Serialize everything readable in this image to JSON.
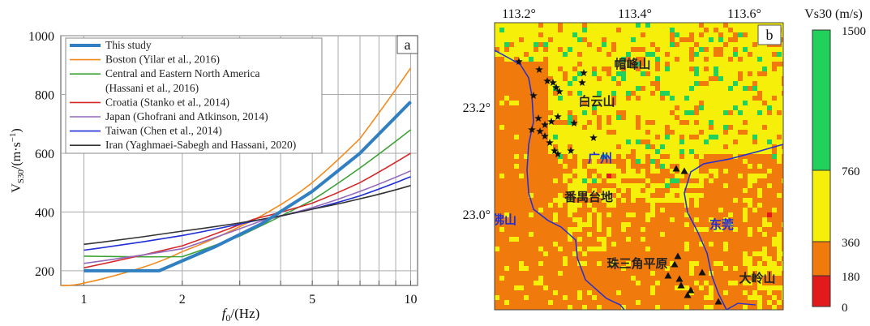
{
  "chart_data": [
    {
      "type": "line",
      "panel_label": "a",
      "xscale": "log",
      "xlim": [
        0.85,
        10.5
      ],
      "ylim": [
        150,
        1000
      ],
      "xticks": [
        1,
        2,
        5,
        10
      ],
      "yticks": [
        200,
        400,
        600,
        800,
        1000
      ],
      "xlabel": "f0/(Hz)",
      "ylabel": "VS30/(m·s⁻¹)",
      "grid": true,
      "legend": "top-left",
      "series": [
        {
          "name": "This study",
          "color": "#2f7fc1",
          "width": 4,
          "x": [
            1,
            1.7,
            2.5,
            3.5,
            5,
            7,
            10
          ],
          "y": [
            200,
            200,
            280,
            360,
            470,
            600,
            775
          ]
        },
        {
          "name": "Boston (Yilar et al., 2016)",
          "color": "#f28a1c",
          "width": 1.6,
          "x": [
            0.85,
            1,
            1.5,
            2,
            3,
            4,
            5,
            7,
            10
          ],
          "y": [
            150,
            158,
            210,
            265,
            350,
            425,
            500,
            650,
            890
          ]
        },
        {
          "name": "Central and Eastern North America (Hassani et al., 2016)",
          "color": "#3da235",
          "width": 1.6,
          "x": [
            1,
            2,
            3,
            5,
            7,
            10
          ],
          "y": [
            250,
            248,
            318,
            440,
            550,
            680
          ]
        },
        {
          "name": "Croatia (Stanko et al., 2014)",
          "color": "#d62728",
          "width": 1.6,
          "x": [
            1,
            2,
            3.3,
            5,
            7,
            10
          ],
          "y": [
            210,
            285,
            375,
            430,
            500,
            600
          ]
        },
        {
          "name": "Japan (Ghofrani and Atkinson, 2014)",
          "color": "#9467bd",
          "width": 1.6,
          "x": [
            1,
            2,
            3.5,
            5,
            7,
            10
          ],
          "y": [
            225,
            275,
            370,
            415,
            470,
            540
          ]
        },
        {
          "name": "Taiwan (Chen et al., 2014)",
          "color": "#1f2ed6",
          "width": 1.6,
          "x": [
            1,
            2,
            3.5,
            5,
            7,
            10
          ],
          "y": [
            270,
            320,
            375,
            410,
            455,
            520
          ]
        },
        {
          "name": "Iran (Yaghmaei-Sabegh and Hassani, 2020)",
          "color": "#333333",
          "width": 1.6,
          "x": [
            1,
            2,
            3.5,
            5,
            7,
            10
          ],
          "y": [
            290,
            335,
            375,
            410,
            445,
            490
          ]
        }
      ]
    },
    {
      "type": "heatmap",
      "panel_label": "b",
      "x_tick_labels": [
        "113.2°",
        "113.4°",
        "113.6°"
      ],
      "y_tick_labels": [
        "23.2°",
        "23.0°"
      ],
      "colorbar": {
        "title": "Vs30 (m/s)",
        "levels": [
          "1500",
          "760",
          "360",
          "180",
          "0"
        ],
        "bands": [
          {
            "from": "760",
            "to": "1500",
            "color": "#22d15b"
          },
          {
            "from": "360",
            "to": "760",
            "color": "#f5ef0a"
          },
          {
            "from": "180",
            "to": "360",
            "color": "#f07a0c"
          },
          {
            "from": "0",
            "to": "180",
            "color": "#e31a1c"
          }
        ]
      },
      "place_labels": [
        {
          "text": "帽峰山",
          "color": "#222222"
        },
        {
          "text": "白云山",
          "color": "#222222"
        },
        {
          "text": "广州",
          "color": "#1f2ed6"
        },
        {
          "text": "番禺台地",
          "color": "#222222"
        },
        {
          "text": "佛山",
          "color": "#1f2ed6"
        },
        {
          "text": "东莞",
          "color": "#1f2ed6"
        },
        {
          "text": "珠三角平原",
          "color": "#222222"
        },
        {
          "text": "大岭山",
          "color": "#222222"
        }
      ]
    }
  ]
}
